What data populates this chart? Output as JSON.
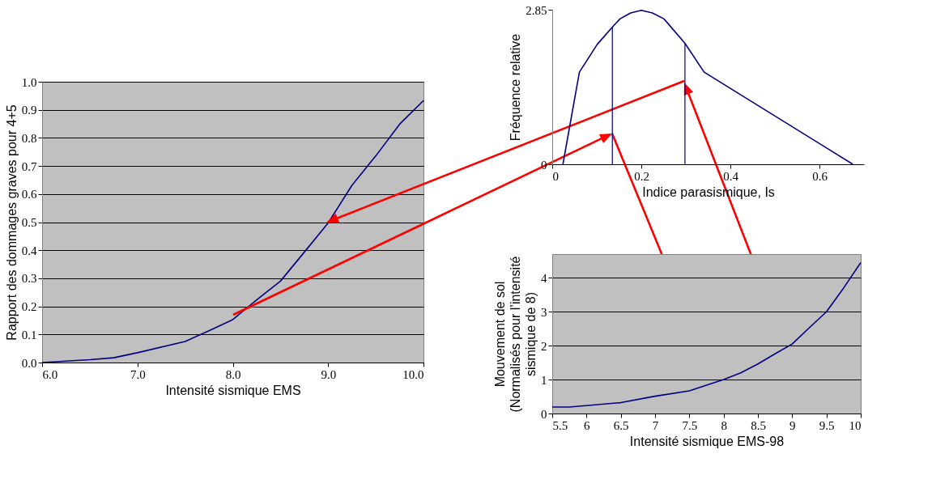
{
  "chart_data": [
    {
      "type": "line",
      "xlabel": "Intensité sismique EMS",
      "ylabel": "Rapport des dommages graves pour 4+5",
      "x": [
        6,
        6.5,
        6.75,
        7,
        7.5,
        7.75,
        8,
        8.25,
        8.5,
        8.75,
        9,
        9.25,
        9.5,
        9.75,
        10
      ],
      "series": [
        {
          "color": "#000080",
          "values": [
            0,
            0.01,
            0.017,
            0.035,
            0.075,
            0.113,
            0.153,
            0.223,
            0.29,
            0.393,
            0.497,
            0.631,
            0.736,
            0.849,
            0.933
          ]
        }
      ],
      "xlim": [
        6,
        10
      ],
      "xticks": [
        {
          "value": 6,
          "label": "6.0"
        },
        {
          "value": 7,
          "label": "7.0"
        },
        {
          "value": 8,
          "label": "8.0"
        },
        {
          "value": 9,
          "label": "9.0"
        },
        {
          "value": 10,
          "label": "10.0"
        }
      ],
      "ylim": [
        0,
        1
      ],
      "yticks": [
        {
          "value": 0,
          "label": "0.0"
        },
        0.1,
        0.2,
        0.3,
        0.4,
        0.5,
        0.6,
        0.7,
        0.8,
        0.9,
        {
          "value": 1,
          "label": "1.0"
        }
      ],
      "grid": "y",
      "legend": false
    },
    {
      "type": "line",
      "xlabel": "Indice parasismique, Is",
      "ylabel": "Fréquence relative",
      "x": [
        0.024,
        0.061,
        0.101,
        0.135,
        0.152,
        0.176,
        0.2,
        0.225,
        0.251,
        0.298,
        0.341,
        0.675
      ],
      "series": [
        {
          "color": "#000080",
          "values": [
            0,
            1.7,
            2.21,
            2.53,
            2.68,
            2.79,
            2.84,
            2.79,
            2.68,
            2.23,
            1.7,
            0
          ]
        }
      ],
      "xlim": [
        0,
        0.7
      ],
      "xticks": [
        0,
        0.2,
        0.4,
        0.6
      ],
      "ylim": [
        0,
        2.85
      ],
      "yticks": [
        0,
        2.85
      ],
      "ref_lines": [
        {
          "axis": "x",
          "value": 0.135,
          "color": "#000080"
        },
        {
          "axis": "x",
          "value": 0.298,
          "color": "#000080"
        }
      ],
      "grid": false,
      "legend": false
    },
    {
      "type": "line",
      "xlabel": "Intensité sismique EMS-98",
      "ylabel": "Mouvement de sol\n(Normalisés pour l’intensité\nsismique de 8)",
      "x": [
        5.5,
        5.75,
        6.5,
        7,
        7.5,
        8,
        8.25,
        8.5,
        8.75,
        9,
        9.25,
        9.5,
        9.75,
        10
      ],
      "series": [
        {
          "color": "#000080",
          "values": [
            0.19,
            0.19,
            0.32,
            0.51,
            0.67,
            1.0,
            1.2,
            1.46,
            1.76,
            2.05,
            2.53,
            3.0,
            3.7,
            4.45
          ]
        }
      ],
      "xlim": [
        5.5,
        10
      ],
      "xticks": [
        5.5,
        6,
        6.5,
        7,
        7.5,
        8,
        8.5,
        9,
        9.5,
        10
      ],
      "ylim": [
        0,
        4.7
      ],
      "yticks": [
        0,
        1,
        2,
        3,
        4
      ],
      "grid": "y",
      "legend": false
    }
  ]
}
